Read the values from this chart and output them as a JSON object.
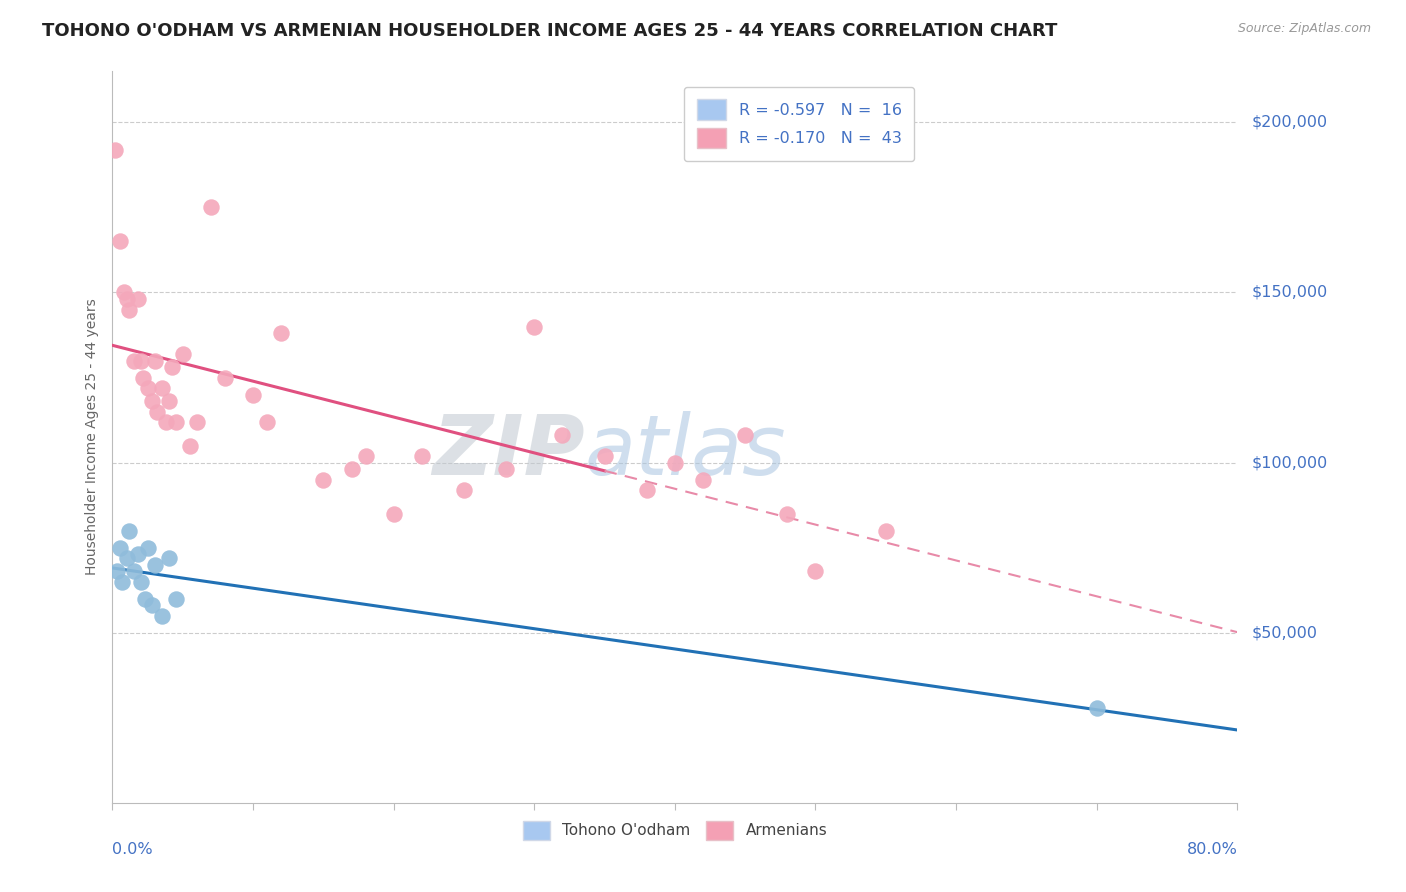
{
  "title": "TOHONO O'ODHAM VS ARMENIAN HOUSEHOLDER INCOME AGES 25 - 44 YEARS CORRELATION CHART",
  "source": "Source: ZipAtlas.com",
  "ylabel": "Householder Income Ages 25 - 44 years",
  "watermark_zip": "ZIP",
  "watermark_atlas": "atlas",
  "tohono_x": [
    0.3,
    0.5,
    0.7,
    1.0,
    1.2,
    1.5,
    1.8,
    2.0,
    2.3,
    2.5,
    2.8,
    3.0,
    3.5,
    4.0,
    4.5,
    70.0
  ],
  "tohono_y": [
    68000,
    75000,
    65000,
    72000,
    80000,
    68000,
    73000,
    65000,
    60000,
    75000,
    58000,
    70000,
    55000,
    72000,
    60000,
    28000
  ],
  "armenian_x": [
    0.2,
    0.5,
    0.8,
    1.0,
    1.2,
    1.5,
    1.8,
    2.0,
    2.2,
    2.5,
    2.8,
    3.0,
    3.2,
    3.5,
    3.8,
    4.0,
    4.2,
    4.5,
    5.0,
    5.5,
    6.0,
    7.0,
    8.0,
    10.0,
    11.0,
    12.0,
    15.0,
    17.0,
    18.0,
    20.0,
    22.0,
    25.0,
    28.0,
    30.0,
    32.0,
    35.0,
    38.0,
    40.0,
    42.0,
    45.0,
    48.0,
    50.0,
    55.0
  ],
  "armenian_y": [
    192000,
    165000,
    150000,
    148000,
    145000,
    130000,
    148000,
    130000,
    125000,
    122000,
    118000,
    130000,
    115000,
    122000,
    112000,
    118000,
    128000,
    112000,
    132000,
    105000,
    112000,
    175000,
    125000,
    120000,
    112000,
    138000,
    95000,
    98000,
    102000,
    85000,
    102000,
    92000,
    98000,
    140000,
    108000,
    102000,
    92000,
    100000,
    95000,
    108000,
    85000,
    68000,
    80000
  ],
  "tohono_color": "#8fbcdb",
  "armenian_color": "#f4a8bb",
  "tohono_line_color": "#2171b5",
  "armenian_line_color_solid": "#e05080",
  "armenian_line_color_dash": "#e88aa8",
  "xmin": 0.0,
  "xmax": 80.0,
  "ymin": 0,
  "ymax": 215000,
  "ytick_vals": [
    50000,
    100000,
    150000,
    200000
  ],
  "ytick_labels": [
    "$50,000",
    "$100,000",
    "$150,000",
    "$200,000"
  ],
  "grid_color": "#cccccc",
  "background_color": "#ffffff",
  "tick_label_color": "#4472c4"
}
